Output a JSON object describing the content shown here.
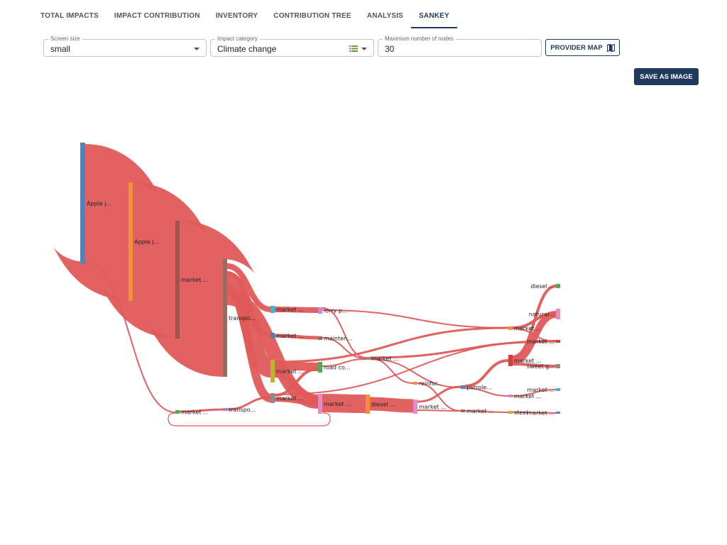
{
  "tabs": [
    {
      "label": "TOTAL IMPACTS"
    },
    {
      "label": "IMPACT CONTRIBUTION"
    },
    {
      "label": "INVENTORY"
    },
    {
      "label": "CONTRIBUTION TREE"
    },
    {
      "label": "ANALYSIS"
    },
    {
      "label": "SANKEY",
      "active": true
    }
  ],
  "controls": {
    "screen_size": {
      "label": "Screen size",
      "value": "small"
    },
    "impact_category": {
      "label": "Impact category",
      "value": "Climate change"
    },
    "max_nodes": {
      "label": "Maximum number of nodes",
      "value": "30"
    },
    "provider_map_label": "PROVIDER MAP",
    "save_image_label": "SAVE AS IMAGE"
  },
  "sankey": {
    "link_color": "#e05a5a",
    "nodes": [
      {
        "id": "n0",
        "label": "Apple j...",
        "color": "#4a86c0"
      },
      {
        "id": "n1",
        "label": "Apple j...",
        "color": "#f0913a"
      },
      {
        "id": "n2",
        "label": "market ...",
        "color": "#a0524d"
      },
      {
        "id": "n3",
        "label": "transpo...",
        "color": "#9a6a5e"
      },
      {
        "id": "n4",
        "label": "market ...",
        "color": "#4cae4c"
      },
      {
        "id": "n5",
        "label": "transpo...",
        "color": "#8b91d8"
      },
      {
        "id": "n6",
        "label": "market ...",
        "color": "#3fb6d0"
      },
      {
        "id": "n7",
        "label": "market ...",
        "color": "#4a7fc0"
      },
      {
        "id": "n8",
        "label": "market ...",
        "color": "#bdb32c"
      },
      {
        "id": "n9",
        "label": "market ...",
        "color": "#8d8d8d"
      },
      {
        "id": "n10",
        "label": "lorry p...",
        "color": "#c489d4"
      },
      {
        "id": "n11",
        "label": "mainten...",
        "color": "#9a6a5e"
      },
      {
        "id": "n12",
        "label": "road co...",
        "color": "#4cae4c"
      },
      {
        "id": "n13",
        "label": "market ...",
        "color": "#e58ac8"
      },
      {
        "id": "n14",
        "label": "market ...",
        "color": "#8d8d8d"
      },
      {
        "id": "n15",
        "label": "diesel ...",
        "color": "#f0913a"
      },
      {
        "id": "n16",
        "label": "reinfor...",
        "color": "#f0913a"
      },
      {
        "id": "n17",
        "label": "market ...",
        "color": "#e58ac8"
      },
      {
        "id": "n18",
        "label": "petrole...",
        "color": "#4a86c0"
      },
      {
        "id": "n19",
        "label": "market ...",
        "color": "#9a6a5e"
      },
      {
        "id": "n20",
        "label": "market ...",
        "color": "#f0913a"
      },
      {
        "id": "n21",
        "label": "market ...",
        "color": "#d04040"
      },
      {
        "id": "n22",
        "label": "market ...",
        "color": "#c489d4"
      },
      {
        "id": "n23",
        "label": "steel",
        "color": "#bdb32c"
      },
      {
        "id": "n24",
        "label": "diesel ...",
        "color": "#4cae4c"
      },
      {
        "id": "n25",
        "label": "natural...",
        "color": "#e58ac8"
      },
      {
        "id": "n26",
        "label": "market ...",
        "color": "#d04040"
      },
      {
        "id": "n27",
        "label": "sweet g...",
        "color": "#8d8d8d"
      },
      {
        "id": "n28",
        "label": "market ...",
        "color": "#3fb6d0"
      },
      {
        "id": "n29",
        "label": "market ...",
        "color": "#4a86c0"
      }
    ],
    "links": [
      {
        "source": "n0",
        "target": "n1"
      },
      {
        "source": "n0",
        "target": "n4"
      },
      {
        "source": "n1",
        "target": "n2"
      },
      {
        "source": "n2",
        "target": "n3"
      },
      {
        "source": "n3",
        "target": "n6"
      },
      {
        "source": "n3",
        "target": "n7"
      },
      {
        "source": "n3",
        "target": "n8"
      },
      {
        "source": "n3",
        "target": "n9"
      },
      {
        "source": "n3",
        "target": "n13"
      },
      {
        "source": "n4",
        "target": "n5"
      },
      {
        "source": "n5",
        "target": "n9"
      },
      {
        "source": "n6",
        "target": "n10"
      },
      {
        "source": "n7",
        "target": "n11"
      },
      {
        "source": "n8",
        "target": "n12"
      },
      {
        "source": "n8",
        "target": "n13"
      },
      {
        "source": "n9",
        "target": "n12"
      },
      {
        "source": "n9",
        "target": "n13"
      },
      {
        "source": "n10",
        "target": "n14"
      },
      {
        "source": "n10",
        "target": "n20"
      },
      {
        "source": "n11",
        "target": "n14"
      },
      {
        "source": "n12",
        "target": "n14"
      },
      {
        "source": "n8",
        "target": "n20"
      },
      {
        "source": "n9",
        "target": "n26"
      },
      {
        "source": "n13",
        "target": "n15"
      },
      {
        "source": "n15",
        "target": "n17"
      },
      {
        "source": "n14",
        "target": "n16"
      },
      {
        "source": "n14",
        "target": "n18"
      },
      {
        "source": "n14",
        "target": "n26"
      },
      {
        "source": "n16",
        "target": "n19"
      },
      {
        "source": "n17",
        "target": "n18"
      },
      {
        "source": "n17",
        "target": "n19"
      },
      {
        "source": "n18",
        "target": "n21"
      },
      {
        "source": "n18",
        "target": "n22"
      },
      {
        "source": "n19",
        "target": "n23"
      },
      {
        "source": "n20",
        "target": "n25"
      },
      {
        "source": "n21",
        "target": "n24"
      },
      {
        "source": "n21",
        "target": "n25"
      },
      {
        "source": "n21",
        "target": "n27"
      },
      {
        "source": "n22",
        "target": "n28"
      },
      {
        "source": "n23",
        "target": "n29"
      },
      {
        "source": "n20",
        "target": "n26"
      }
    ]
  }
}
